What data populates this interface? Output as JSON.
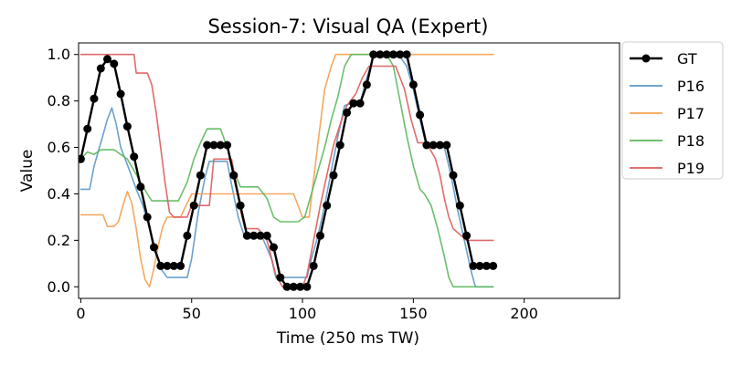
{
  "chart_data": {
    "type": "line",
    "title": "Session-7: Visual QA (Expert)",
    "xlabel": "Time (250 ms TW)",
    "ylabel": "Value",
    "xlim": [
      -1,
      243
    ],
    "ylim": [
      -0.05,
      1.05
    ],
    "xticks": [
      0,
      50,
      100,
      150,
      200
    ],
    "yticks": [
      0.0,
      0.2,
      0.4,
      0.6,
      0.8,
      1.0
    ],
    "xtick_labels": [
      "0",
      "50",
      "100",
      "150",
      "200"
    ],
    "ytick_labels": [
      "0.0",
      "0.2",
      "0.4",
      "0.6",
      "0.8",
      "1.0"
    ],
    "grid": false,
    "legend_position": "outside-right",
    "series": [
      {
        "name": "GT",
        "color": "#000000",
        "marker": "circle",
        "points": [
          [
            0,
            0.55
          ],
          [
            3,
            0.68
          ],
          [
            6,
            0.81
          ],
          [
            9,
            0.94
          ],
          [
            12,
            0.98
          ],
          [
            15,
            0.96
          ],
          [
            18,
            0.83
          ],
          [
            21,
            0.69
          ],
          [
            24,
            0.56
          ],
          [
            27,
            0.43
          ],
          [
            30,
            0.3
          ],
          [
            33,
            0.17
          ],
          [
            36,
            0.09
          ],
          [
            39,
            0.09
          ],
          [
            42,
            0.09
          ],
          [
            45,
            0.09
          ],
          [
            48,
            0.22
          ],
          [
            51,
            0.35
          ],
          [
            54,
            0.48
          ],
          [
            57,
            0.61
          ],
          [
            60,
            0.61
          ],
          [
            63,
            0.61
          ],
          [
            66,
            0.61
          ],
          [
            69,
            0.48
          ],
          [
            72,
            0.35
          ],
          [
            75,
            0.22
          ],
          [
            78,
            0.22
          ],
          [
            81,
            0.22
          ],
          [
            84,
            0.22
          ],
          [
            87,
            0.17
          ],
          [
            90,
            0.04
          ],
          [
            93,
            0.0
          ],
          [
            96,
            0.0
          ],
          [
            99,
            0.0
          ],
          [
            102,
            0.0
          ],
          [
            105,
            0.09
          ],
          [
            108,
            0.22
          ],
          [
            111,
            0.35
          ],
          [
            114,
            0.48
          ],
          [
            117,
            0.61
          ],
          [
            120,
            0.75
          ],
          [
            123,
            0.79
          ],
          [
            126,
            0.79
          ],
          [
            129,
            0.87
          ],
          [
            132,
            1.0
          ],
          [
            135,
            1.0
          ],
          [
            138,
            1.0
          ],
          [
            141,
            1.0
          ],
          [
            144,
            1.0
          ],
          [
            147,
            1.0
          ],
          [
            150,
            0.87
          ],
          [
            153,
            0.74
          ],
          [
            156,
            0.61
          ],
          [
            159,
            0.61
          ],
          [
            162,
            0.61
          ],
          [
            165,
            0.61
          ],
          [
            168,
            0.48
          ],
          [
            171,
            0.35
          ],
          [
            174,
            0.22
          ],
          [
            177,
            0.09
          ],
          [
            180,
            0.09
          ],
          [
            183,
            0.09
          ],
          [
            186,
            0.09
          ]
        ]
      },
      {
        "name": "P16",
        "color": "#5b97c8",
        "points": [
          [
            0,
            0.42
          ],
          [
            4,
            0.42
          ],
          [
            6,
            0.52
          ],
          [
            9,
            0.62
          ],
          [
            12,
            0.72
          ],
          [
            14,
            0.77
          ],
          [
            16,
            0.7
          ],
          [
            18,
            0.6
          ],
          [
            20,
            0.55
          ],
          [
            22,
            0.5
          ],
          [
            25,
            0.42
          ],
          [
            28,
            0.35
          ],
          [
            31,
            0.25
          ],
          [
            34,
            0.15
          ],
          [
            36,
            0.08
          ],
          [
            39,
            0.04
          ],
          [
            42,
            0.04
          ],
          [
            45,
            0.04
          ],
          [
            48,
            0.04
          ],
          [
            50,
            0.12
          ],
          [
            53,
            0.32
          ],
          [
            56,
            0.47
          ],
          [
            58,
            0.54
          ],
          [
            62,
            0.54
          ],
          [
            66,
            0.54
          ],
          [
            68,
            0.44
          ],
          [
            71,
            0.3
          ],
          [
            74,
            0.21
          ],
          [
            76,
            0.21
          ],
          [
            80,
            0.21
          ],
          [
            82,
            0.21
          ],
          [
            86,
            0.12
          ],
          [
            88,
            0.04
          ],
          [
            91,
            0.04
          ],
          [
            95,
            0.04
          ],
          [
            99,
            0.04
          ],
          [
            102,
            0.04
          ],
          [
            104,
            0.12
          ],
          [
            107,
            0.22
          ],
          [
            110,
            0.35
          ],
          [
            113,
            0.5
          ],
          [
            116,
            0.65
          ],
          [
            119,
            0.78
          ],
          [
            122,
            0.79
          ],
          [
            126,
            0.79
          ],
          [
            129,
            0.9
          ],
          [
            132,
            0.99
          ],
          [
            138,
            0.99
          ],
          [
            144,
            0.99
          ],
          [
            147,
            0.95
          ],
          [
            150,
            0.85
          ],
          [
            153,
            0.72
          ],
          [
            156,
            0.6
          ],
          [
            160,
            0.6
          ],
          [
            164,
            0.6
          ],
          [
            167,
            0.48
          ],
          [
            170,
            0.33
          ],
          [
            173,
            0.2
          ],
          [
            176,
            0.07
          ],
          [
            178,
            0.0
          ],
          [
            186,
            0.0
          ]
        ]
      },
      {
        "name": "P17",
        "color": "#f4a050",
        "points": [
          [
            0,
            0.31
          ],
          [
            10,
            0.31
          ],
          [
            12,
            0.26
          ],
          [
            15,
            0.26
          ],
          [
            17,
            0.28
          ],
          [
            19,
            0.35
          ],
          [
            21,
            0.41
          ],
          [
            23,
            0.36
          ],
          [
            25,
            0.25
          ],
          [
            27,
            0.12
          ],
          [
            29,
            0.03
          ],
          [
            31,
            0.0
          ],
          [
            33,
            0.08
          ],
          [
            35,
            0.18
          ],
          [
            37,
            0.26
          ],
          [
            39,
            0.3
          ],
          [
            42,
            0.3
          ],
          [
            45,
            0.3
          ],
          [
            48,
            0.36
          ],
          [
            50,
            0.4
          ],
          [
            56,
            0.4
          ],
          [
            62,
            0.4
          ],
          [
            68,
            0.4
          ],
          [
            74,
            0.4
          ],
          [
            80,
            0.4
          ],
          [
            84,
            0.4
          ],
          [
            90,
            0.4
          ],
          [
            96,
            0.4
          ],
          [
            100,
            0.3
          ],
          [
            103,
            0.3
          ],
          [
            107,
            0.62
          ],
          [
            110,
            0.85
          ],
          [
            113,
            0.95
          ],
          [
            115,
            1.0
          ],
          [
            130,
            1.0
          ],
          [
            150,
            1.0
          ],
          [
            170,
            1.0
          ],
          [
            186,
            1.0
          ]
        ]
      },
      {
        "name": "P18",
        "color": "#5bb85b",
        "points": [
          [
            0,
            0.55
          ],
          [
            3,
            0.58
          ],
          [
            6,
            0.57
          ],
          [
            9,
            0.59
          ],
          [
            12,
            0.59
          ],
          [
            15,
            0.59
          ],
          [
            18,
            0.57
          ],
          [
            21,
            0.55
          ],
          [
            24,
            0.5
          ],
          [
            27,
            0.45
          ],
          [
            30,
            0.4
          ],
          [
            32,
            0.37
          ],
          [
            36,
            0.37
          ],
          [
            40,
            0.37
          ],
          [
            44,
            0.37
          ],
          [
            48,
            0.45
          ],
          [
            51,
            0.55
          ],
          [
            54,
            0.62
          ],
          [
            57,
            0.68
          ],
          [
            60,
            0.68
          ],
          [
            63,
            0.68
          ],
          [
            66,
            0.6
          ],
          [
            69,
            0.5
          ],
          [
            72,
            0.43
          ],
          [
            75,
            0.43
          ],
          [
            80,
            0.43
          ],
          [
            84,
            0.38
          ],
          [
            87,
            0.3
          ],
          [
            90,
            0.28
          ],
          [
            94,
            0.28
          ],
          [
            98,
            0.28
          ],
          [
            101,
            0.3
          ],
          [
            104,
            0.4
          ],
          [
            107,
            0.5
          ],
          [
            110,
            0.6
          ],
          [
            113,
            0.72
          ],
          [
            116,
            0.82
          ],
          [
            119,
            0.95
          ],
          [
            122,
            1.0
          ],
          [
            126,
            1.0
          ],
          [
            132,
            1.0
          ],
          [
            138,
            1.0
          ],
          [
            141,
            0.95
          ],
          [
            144,
            0.8
          ],
          [
            147,
            0.65
          ],
          [
            150,
            0.52
          ],
          [
            153,
            0.42
          ],
          [
            155,
            0.4
          ],
          [
            158,
            0.35
          ],
          [
            161,
            0.25
          ],
          [
            164,
            0.13
          ],
          [
            166,
            0.04
          ],
          [
            168,
            0.0
          ],
          [
            186,
            0.0
          ]
        ]
      },
      {
        "name": "P19",
        "color": "#dc5c5c",
        "points": [
          [
            0,
            1.0
          ],
          [
            10,
            1.0
          ],
          [
            20,
            1.0
          ],
          [
            24,
            1.0
          ],
          [
            25,
            0.92
          ],
          [
            30,
            0.92
          ],
          [
            32,
            0.87
          ],
          [
            34,
            0.75
          ],
          [
            36,
            0.6
          ],
          [
            38,
            0.45
          ],
          [
            40,
            0.32
          ],
          [
            42,
            0.3
          ],
          [
            45,
            0.3
          ],
          [
            48,
            0.3
          ],
          [
            50,
            0.35
          ],
          [
            54,
            0.35
          ],
          [
            58,
            0.35
          ],
          [
            60,
            0.55
          ],
          [
            64,
            0.55
          ],
          [
            68,
            0.55
          ],
          [
            70,
            0.45
          ],
          [
            72,
            0.33
          ],
          [
            74,
            0.25
          ],
          [
            76,
            0.25
          ],
          [
            80,
            0.25
          ],
          [
            84,
            0.2
          ],
          [
            88,
            0.05
          ],
          [
            91,
            0.0
          ],
          [
            96,
            0.0
          ],
          [
            100,
            0.0
          ],
          [
            102,
            0.05
          ],
          [
            105,
            0.2
          ],
          [
            108,
            0.35
          ],
          [
            111,
            0.48
          ],
          [
            114,
            0.61
          ],
          [
            117,
            0.7
          ],
          [
            120,
            0.78
          ],
          [
            124,
            0.83
          ],
          [
            127,
            0.9
          ],
          [
            130,
            0.95
          ],
          [
            136,
            0.95
          ],
          [
            142,
            0.95
          ],
          [
            146,
            0.85
          ],
          [
            149,
            0.72
          ],
          [
            152,
            0.62
          ],
          [
            156,
            0.62
          ],
          [
            160,
            0.55
          ],
          [
            162,
            0.48
          ],
          [
            164,
            0.38
          ],
          [
            166,
            0.3
          ],
          [
            168,
            0.25
          ],
          [
            174,
            0.2
          ],
          [
            178,
            0.2
          ],
          [
            186,
            0.2
          ]
        ]
      }
    ]
  }
}
